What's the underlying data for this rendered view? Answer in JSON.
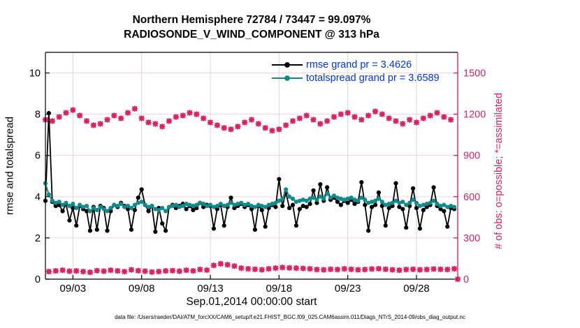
{
  "title": {
    "line1": "Northern Hemisphere 72784 / 73447 = 99.097%",
    "line2": "RADIOSONDE_V_WIND_COMPONENT @ 313 hPa"
  },
  "axes": {
    "ylabel_left": "rmse and totalspread",
    "ylabel_right": "# of obs: o=possible; *=assimilated",
    "xlabel": "Sep.01,2014 00:00:00 start"
  },
  "legend": {
    "items": [
      {
        "label": "rmse grand pr = 3.4626",
        "color": "#000000"
      },
      {
        "label": "totalspread grand pr = 3.6589",
        "color": "#0e8b8b"
      }
    ],
    "text_color": "#0033ee"
  },
  "footer": "data file: /Users/raeder/DAI/ATM_forcXX/CAM6_setup/f.e21.FHIST_BGC.f09_025.CAM6assim.011/Diags_NTrS_2014-09/obs_diag_output.nc",
  "colors": {
    "rmse": "#000000",
    "totalspread": "#0e8b8b",
    "obs": "#dd2160",
    "grid_pink": "#f7d2de",
    "grid_gray": "#d8d8d8",
    "legend_text": "#0033ee"
  },
  "chart_data": {
    "type": "line",
    "title": "Northern Hemisphere 72784 / 73447 = 99.097% | RADIOSONDE_V_WIND_COMPONENT @ 313 hPa",
    "xlabel": "Sep.01,2014 00:00:00 start",
    "ylabel_left": "rmse and totalspread",
    "ylabel_right": "# of obs: o=possible; *=assimilated",
    "x_start_day": 0,
    "x_step_days": 0.25,
    "x_range_days": [
      0,
      30
    ],
    "x_tick_positions_days": [
      2,
      7,
      12,
      17,
      22,
      27
    ],
    "x_tick_labels": [
      "09/03",
      "09/08",
      "09/13",
      "09/18",
      "09/23",
      "09/28"
    ],
    "ylim_left": [
      0,
      11
    ],
    "yticks_left": [
      0,
      2,
      4,
      6,
      8,
      10
    ],
    "ylim_right": [
      0,
      1650
    ],
    "yticks_right": [
      0,
      300,
      600,
      900,
      1200,
      1500
    ],
    "grid": "pink horizontal lines at right-axis ticks, gray vertical lines at date ticks",
    "legend_position": "top-right inside, no box",
    "series": [
      {
        "name": "rmse",
        "axis": "left",
        "color": "#000000",
        "marker": "filled-circle",
        "grand_prior_mean": 3.4626,
        "values": [
          3.8,
          8.05,
          3.75,
          3.55,
          3.6,
          3.3,
          3.65,
          2.85,
          3.45,
          2.6,
          3.55,
          3.4,
          3.3,
          2.35,
          3.5,
          2.4,
          3.55,
          3.45,
          2.35,
          3.3,
          3.6,
          3.5,
          3.7,
          3.55,
          3.4,
          2.4,
          3.35,
          3.95,
          4.35,
          3.6,
          3.3,
          3.55,
          2.3,
          3.45,
          2.7,
          2.35,
          3.5,
          3.6,
          3.45,
          3.55,
          3.65,
          3.4,
          3.55,
          3.35,
          3.45,
          3.7,
          3.5,
          3.6,
          3.55,
          2.45,
          3.4,
          3.6,
          2.6,
          3.5,
          3.95,
          3.45,
          3.55,
          3.65,
          3.5,
          3.6,
          3.4,
          2.4,
          3.55,
          3.35,
          2.55,
          3.45,
          3.6,
          3.5,
          4.85,
          3.55,
          4.2,
          3.45,
          3.6,
          2.6,
          3.4,
          3.55,
          3.5,
          3.65,
          4.3,
          3.7,
          4.6,
          3.8,
          4.45,
          3.85,
          3.95,
          3.75,
          3.6,
          3.8,
          3.7,
          3.85,
          3.65,
          3.75,
          4.7,
          3.6,
          2.35,
          3.5,
          3.6,
          4.2,
          3.55,
          2.6,
          3.45,
          3.55,
          4.65,
          3.5,
          3.4,
          2.5,
          3.55,
          4.4,
          3.45,
          2.45,
          3.35,
          3.5,
          3.6,
          4.45,
          3.55,
          3.4,
          3.3,
          2.55,
          3.45,
          3.4,
          null
        ]
      },
      {
        "name": "totalspread",
        "axis": "left",
        "color": "#0e8b8b",
        "marker": "filled-circle",
        "grand_prior_mean": 3.6589,
        "values": [
          4.65,
          4.1,
          3.8,
          3.7,
          3.75,
          3.6,
          3.7,
          3.55,
          3.65,
          3.45,
          3.6,
          3.5,
          3.55,
          3.3,
          3.45,
          3.35,
          3.5,
          3.4,
          3.3,
          3.45,
          3.6,
          3.55,
          3.65,
          3.5,
          3.55,
          3.45,
          3.6,
          3.7,
          3.75,
          3.6,
          3.5,
          3.55,
          3.4,
          3.35,
          3.45,
          3.3,
          3.5,
          3.55,
          3.6,
          3.5,
          3.55,
          3.65,
          3.6,
          3.55,
          3.6,
          3.7,
          3.65,
          3.55,
          3.6,
          3.5,
          3.55,
          3.65,
          3.55,
          3.6,
          3.7,
          3.6,
          3.65,
          3.7,
          3.6,
          3.65,
          3.55,
          3.5,
          3.6,
          3.55,
          3.5,
          3.6,
          3.65,
          3.7,
          3.8,
          3.9,
          4.35,
          4.0,
          3.9,
          3.75,
          3.8,
          3.85,
          3.8,
          3.9,
          3.95,
          3.85,
          4.0,
          3.9,
          4.15,
          3.95,
          4.05,
          3.95,
          3.9,
          3.85,
          3.9,
          3.95,
          3.85,
          3.8,
          3.95,
          3.85,
          3.7,
          3.75,
          3.8,
          3.9,
          3.75,
          3.6,
          3.65,
          3.7,
          3.8,
          3.7,
          3.75,
          3.6,
          3.7,
          3.85,
          3.7,
          3.55,
          3.6,
          3.65,
          3.7,
          3.8,
          3.65,
          3.55,
          3.6,
          3.5,
          3.55,
          3.5,
          null
        ]
      },
      {
        "name": "n_obs (o=possible and *=assimilated, overlapping)",
        "axis": "right",
        "color": "#dd2160",
        "markers": [
          "o",
          "asterisk"
        ],
        "note": "00Z/12Z bins ~1080-1240 obs; 06Z/18Z bins ~50-112 obs; final bin 0",
        "values": [
          1160,
          55,
          1150,
          60,
          1180,
          65,
          1210,
          58,
          1230,
          60,
          1190,
          55,
          1150,
          50,
          1120,
          62,
          1130,
          58,
          1160,
          65,
          1190,
          60,
          1170,
          55,
          1210,
          68,
          1240,
          62,
          1170,
          58,
          1140,
          52,
          1130,
          55,
          1110,
          60,
          1150,
          62,
          1180,
          58,
          1190,
          65,
          1210,
          60,
          1200,
          70,
          1170,
          66,
          1140,
          100,
          1120,
          112,
          1100,
          105,
          1090,
          95,
          1110,
          80,
          1140,
          75,
          1160,
          72,
          1130,
          68,
          1100,
          75,
          1080,
          80,
          1090,
          85,
          1120,
          82,
          1150,
          80,
          1170,
          78,
          1190,
          75,
          1160,
          70,
          1130,
          68,
          1150,
          72,
          1180,
          70,
          1200,
          75,
          1210,
          72,
          1180,
          68,
          1160,
          70,
          1190,
          74,
          1220,
          76,
          1200,
          72,
          1170,
          68,
          1150,
          65,
          1130,
          70,
          1160,
          72,
          1140,
          68,
          1170,
          70,
          1190,
          74,
          1210,
          72,
          1180,
          70,
          1160,
          75,
          0
        ]
      }
    ]
  }
}
